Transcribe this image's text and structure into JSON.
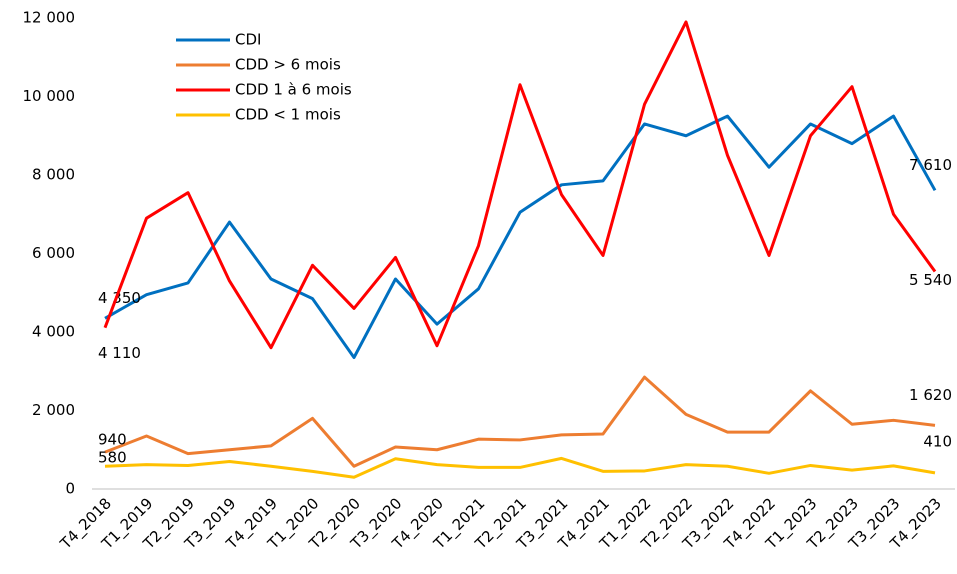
{
  "chart_data": {
    "type": "line",
    "categories": [
      "T4_2018",
      "T1_2019",
      "T2_2019",
      "T3_2019",
      "T4_2019",
      "T1_2020",
      "T2_2020",
      "T3_2020",
      "T4_2020",
      "T1_2021",
      "T2_2021",
      "T3_2021",
      "T4_2021",
      "T1_2022",
      "T2_2022",
      "T3_2022",
      "T4_2022",
      "T1_2023",
      "T2_2023",
      "T3_2023",
      "T4_2023"
    ],
    "series": [
      {
        "name": "CDI",
        "color": "#0070c0",
        "values": [
          4350,
          4950,
          5250,
          6800,
          5350,
          4850,
          3350,
          5350,
          4200,
          5100,
          7050,
          7750,
          7850,
          9300,
          9000,
          9500,
          8200,
          9300,
          8800,
          9500,
          7610
        ],
        "value_labels": [
          "4 350",
          null,
          null,
          null,
          null,
          null,
          null,
          null,
          null,
          null,
          null,
          null,
          null,
          null,
          null,
          null,
          null,
          null,
          null,
          null,
          "7 610"
        ]
      },
      {
        "name": "CDD > 6 mois",
        "color": "#ed7d31",
        "values": [
          940,
          1350,
          900,
          1000,
          1100,
          1800,
          580,
          1070,
          1000,
          1270,
          1250,
          1380,
          1400,
          2850,
          1900,
          1450,
          1450,
          2500,
          1650,
          1750,
          1620
        ],
        "value_labels": [
          "940",
          null,
          null,
          null,
          null,
          null,
          null,
          null,
          null,
          null,
          null,
          null,
          null,
          null,
          null,
          null,
          null,
          null,
          null,
          null,
          "1 620"
        ]
      },
      {
        "name": "CDD 1 à 6 mois",
        "color": "#ff0000",
        "values": [
          4110,
          6900,
          7550,
          5300,
          3600,
          5700,
          4600,
          5900,
          3650,
          6200,
          10300,
          7500,
          5950,
          9800,
          11900,
          8500,
          5950,
          9000,
          10250,
          7000,
          5540
        ],
        "value_labels": [
          "4 110",
          null,
          null,
          null,
          null,
          null,
          null,
          null,
          null,
          null,
          null,
          null,
          null,
          null,
          null,
          null,
          null,
          null,
          null,
          null,
          "5 540"
        ]
      },
      {
        "name": "CDD < 1 mois",
        "color": "#ffc000",
        "values": [
          580,
          620,
          600,
          700,
          580,
          450,
          300,
          770,
          620,
          550,
          550,
          780,
          450,
          460,
          620,
          580,
          400,
          600,
          480,
          590,
          410
        ],
        "value_labels": [
          "580",
          null,
          null,
          null,
          null,
          null,
          null,
          null,
          null,
          null,
          null,
          null,
          null,
          null,
          null,
          null,
          null,
          null,
          null,
          null,
          "410"
        ]
      }
    ],
    "ylim": [
      0,
      12000
    ],
    "yticks": [
      0,
      {
        "value": 2000,
        "label": "2 000"
      },
      {
        "value": 4000,
        "label": "4 000"
      },
      {
        "value": 6000,
        "label": "6 000"
      },
      {
        "value": 8000,
        "label": "8 000"
      },
      {
        "value": 10000,
        "label": "10 000"
      },
      {
        "value": 12000,
        "label": "12 000"
      }
    ],
    "grid": false,
    "legend": "top-left"
  }
}
